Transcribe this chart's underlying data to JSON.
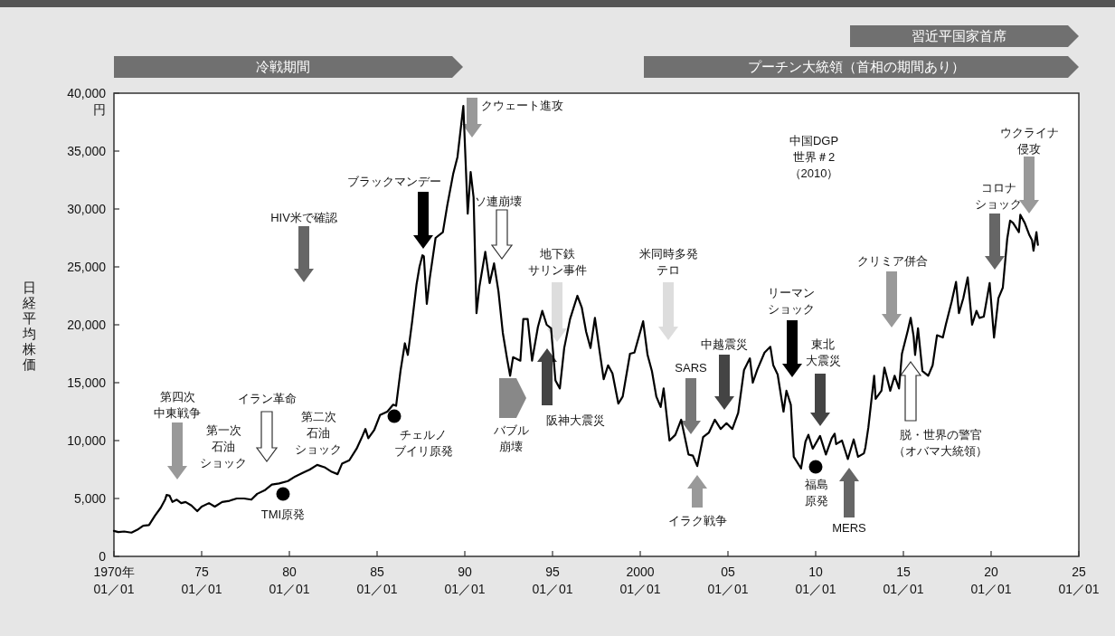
{
  "chart_data": {
    "type": "line",
    "ylabel": "日経平均株価",
    "xlim": [
      "1970-01",
      "2025-01"
    ],
    "ylim": [
      0,
      40000
    ],
    "xticks": [
      {
        "value": "1970-01",
        "label": "1970年\n01／01"
      },
      {
        "value": "1975-01",
        "label": "75\n01／01"
      },
      {
        "value": "1980-01",
        "label": "80\n01／01"
      },
      {
        "value": "1985-01",
        "label": "85\n01／01"
      },
      {
        "value": "1990-01",
        "label": "90\n01／01"
      },
      {
        "value": "1995-01",
        "label": "95\n01／01"
      },
      {
        "value": "2000-01",
        "label": "2000\n01／01"
      },
      {
        "value": "2005-01",
        "label": "05\n01／01"
      },
      {
        "value": "2010-01",
        "label": "10\n01／01"
      },
      {
        "value": "2015-01",
        "label": "15\n01／01"
      },
      {
        "value": "2020-01",
        "label": "20\n01／01"
      },
      {
        "value": "2025-01",
        "label": "25\n01／01"
      }
    ],
    "yticks": [
      0,
      {
        "value": 5000,
        "label": "5,000"
      },
      {
        "value": 10000,
        "label": "10,000"
      },
      {
        "value": 15000,
        "label": "15,000"
      },
      {
        "value": 20000,
        "label": "20,000"
      },
      {
        "value": 25000,
        "label": "25,000"
      },
      {
        "value": 30000,
        "label": "30,000"
      },
      {
        "value": 35000,
        "label": "35,000"
      },
      {
        "value": 40000,
        "label": "40,000\n円"
      }
    ],
    "x": [
      "1970-01",
      "1970-04",
      "1970-08",
      "1971-01",
      "1971-05",
      "1971-09",
      "1972-01",
      "1972-05",
      "1972-09",
      "1972-12",
      "1973-01",
      "1973-03",
      "1973-05",
      "1973-08",
      "1973-11",
      "1974-02",
      "1974-06",
      "1974-10",
      "1975-01",
      "1975-06",
      "1975-10",
      "1976-03",
      "1976-08",
      "1977-01",
      "1977-06",
      "1977-11",
      "1978-03",
      "1978-08",
      "1979-01",
      "1979-06",
      "1979-12",
      "1980-05",
      "1980-10",
      "1981-03",
      "1981-08",
      "1982-01",
      "1982-06",
      "1982-10",
      "1983-01",
      "1983-06",
      "1983-11",
      "1984-03",
      "1984-05",
      "1984-07",
      "1984-11",
      "1985-03",
      "1985-08",
      "1985-12",
      "1986-02",
      "1986-05",
      "1986-08",
      "1986-10",
      "1987-01",
      "1987-04",
      "1987-06",
      "1987-08",
      "1987-09",
      "1987-11",
      "1988-01",
      "1988-05",
      "1988-10",
      "1989-01",
      "1989-05",
      "1989-08",
      "1989-12",
      "1990-03",
      "1990-05",
      "1990-07",
      "1990-09",
      "1990-11",
      "1991-03",
      "1991-06",
      "1991-09",
      "1991-12",
      "1992-03",
      "1992-06",
      "1992-08",
      "1992-10",
      "1993-03",
      "1993-05",
      "1993-08",
      "1993-11",
      "1994-03",
      "1994-06",
      "1994-09",
      "1994-12",
      "1995-03",
      "1995-06",
      "1995-09",
      "1996-01",
      "1996-06",
      "1996-09",
      "1996-12",
      "1997-03",
      "1997-06",
      "1997-09",
      "1997-12",
      "1998-03",
      "1998-06",
      "1998-10",
      "1999-01",
      "1999-06",
      "1999-09",
      "2000-03",
      "2000-06",
      "2000-09",
      "2000-12",
      "2001-03",
      "2001-05",
      "2001-09",
      "2002-01",
      "2002-05",
      "2002-10",
      "2003-01",
      "2003-04",
      "2003-08",
      "2003-12",
      "2004-04",
      "2004-08",
      "2004-12",
      "2005-04",
      "2005-08",
      "2005-12",
      "2006-04",
      "2006-06",
      "2006-09",
      "2007-02",
      "2007-06",
      "2007-08",
      "2007-11",
      "2008-03",
      "2008-05",
      "2008-08",
      "2008-10",
      "2009-03",
      "2009-06",
      "2009-08",
      "2009-11",
      "2010-04",
      "2010-08",
      "2010-12",
      "2011-02",
      "2011-03",
      "2011-07",
      "2011-11",
      "2012-03",
      "2012-06",
      "2012-10",
      "2012-11",
      "2013-01",
      "2013-05",
      "2013-06",
      "2013-10",
      "2013-12",
      "2014-04",
      "2014-07",
      "2014-10",
      "2014-12",
      "2015-04",
      "2015-06",
      "2015-08",
      "2015-09",
      "2015-11",
      "2016-02",
      "2016-06",
      "2016-09",
      "2016-12",
      "2017-04",
      "2017-06",
      "2017-10",
      "2018-01",
      "2018-03",
      "2018-06",
      "2018-09",
      "2018-12",
      "2019-03",
      "2019-05",
      "2019-08",
      "2019-12",
      "2020-03",
      "2020-06",
      "2020-09",
      "2020-12",
      "2021-02",
      "2021-04",
      "2021-08",
      "2021-09",
      "2021-12",
      "2022-03",
      "2022-05",
      "2022-06",
      "2022-08",
      "2022-09"
    ],
    "series": [
      {
        "color": "#000000",
        "values": [
          2200,
          2100,
          2150,
          2050,
          2300,
          2650,
          2700,
          3500,
          4200,
          4900,
          5300,
          5250,
          4700,
          4900,
          4600,
          4700,
          4400,
          3900,
          4300,
          4600,
          4300,
          4700,
          4800,
          5000,
          5000,
          4900,
          5400,
          5700,
          6200,
          6300,
          6500,
          6900,
          7200,
          7500,
          7900,
          7700,
          7300,
          7100,
          8000,
          8300,
          9300,
          10400,
          11000,
          10200,
          10900,
          12200,
          12500,
          13100,
          13000,
          16000,
          18400,
          17400,
          20300,
          23500,
          25000,
          26000,
          25900,
          21800,
          24000,
          27500,
          28000,
          30300,
          33000,
          34500,
          38900,
          29600,
          33200,
          31000,
          21000,
          23300,
          26300,
          23600,
          25300,
          22900,
          19300,
          17000,
          15600,
          17200,
          16900,
          20500,
          20500,
          16900,
          19800,
          21200,
          20000,
          19700,
          15200,
          14500,
          18000,
          20500,
          22500,
          21500,
          19400,
          18000,
          20600,
          17900,
          15300,
          16500,
          15800,
          13200,
          13800,
          17500,
          17600,
          20300,
          17400,
          16000,
          13800,
          12900,
          14500,
          10000,
          10500,
          11800,
          8800,
          8700,
          7800,
          10300,
          10700,
          11800,
          11000,
          11500,
          11000,
          12400,
          16100,
          17100,
          15000,
          16100,
          17600,
          18100,
          16500,
          15700,
          12500,
          14300,
          13100,
          8600,
          7600,
          9900,
          10500,
          9300,
          10400,
          8800,
          10200,
          10600,
          9700,
          10000,
          8400,
          10100,
          8600,
          8900,
          9400,
          11100,
          15600,
          13600,
          14300,
          16300,
          14300,
          15600,
          14500,
          17500,
          19500,
          20600,
          19000,
          17400,
          19700,
          16000,
          15600,
          16500,
          19100,
          18900,
          20000,
          22000,
          23700,
          21000,
          22300,
          24100,
          20000,
          21200,
          20600,
          20700,
          23600,
          18900,
          22300,
          23200,
          27400,
          29000,
          28800,
          28000,
          29500,
          28800,
          27800,
          27300,
          26400,
          28000,
          26900
        ]
      }
    ],
    "annotations": [
      "第四次中東戦争",
      "第一次石油ショック",
      "イラン革命",
      "第二次石油ショック",
      "TMI原発",
      "HIV米で確認",
      "チェルノブイリ原発",
      "ブラックマンデー",
      "クウェート進攻",
      "ソ連崩壊",
      "バブル崩壊",
      "阪神大震災",
      "地下鉄サリン事件",
      "米同時多発テロ",
      "SARS",
      "イラク戦争",
      "中越震災",
      "中国DGP世界＃2（2010）",
      "リーマンショック",
      "東北大震災",
      "福島原発",
      "MERS",
      "クリミア併合",
      "脱・世界の警官（オバマ大統領）",
      "コロナショック",
      "ウクライナ侵攻",
      "冷戦期間",
      "プーチン大統領（首相の期間あり）",
      "習近平国家首席"
    ]
  }
}
